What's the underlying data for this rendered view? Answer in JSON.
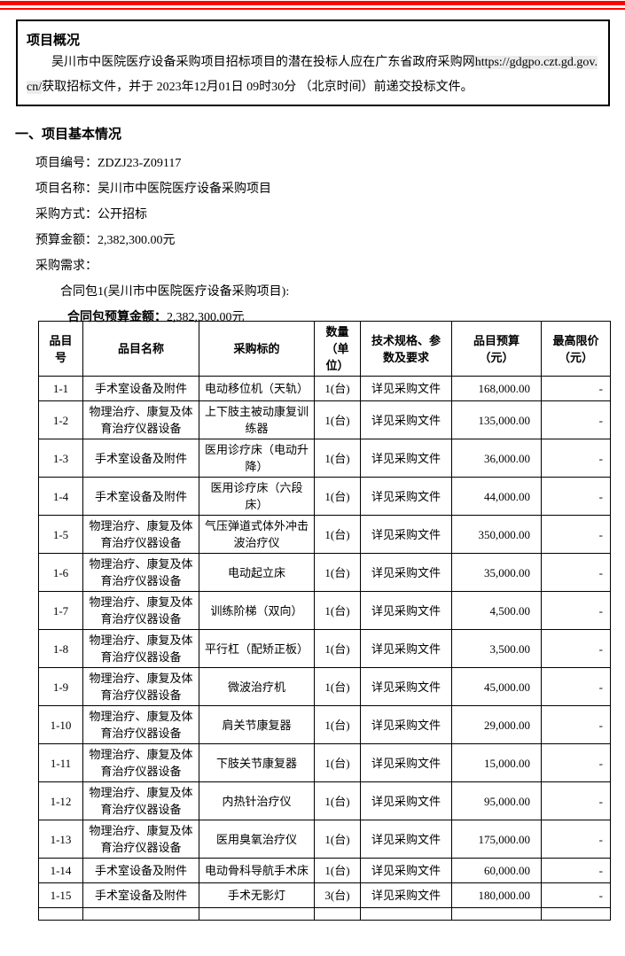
{
  "page": {
    "top_rules_color": "#ff0000"
  },
  "overview": {
    "title": "项目概况",
    "para_before_url": "吴川市中医院医疗设备采购项目招标项目的潜在投标人应在广东省政府采购网",
    "url": "https://gdgpo.czt.gd.gov.cn/",
    "para_after_url": "获取招标文件，并于 2023年12月01日 09时30分 （北京时间）前递交投标文件。"
  },
  "basic_info": {
    "heading": "一、项目基本情况",
    "fields": [
      "项目编号：ZDZJ23-Z09117",
      "项目名称：吴川市中医院医疗设备采购项目",
      "采购方式：公开招标",
      "预算金额：2,382,300.00元",
      "采购需求："
    ],
    "contract_package": "合同包1(吴川市中医院医疗设备采购项目):",
    "contract_budget_label": "合同包预算金额：",
    "contract_budget_value": "2,382,300.00元"
  },
  "table": {
    "headers": [
      "品目\n号",
      "品目名称",
      "采购标的",
      "数量\n（单\n位）",
      "技术规格、参\n数及要求",
      "品目预算\n（元）",
      "最高限价\n（元）"
    ],
    "rows": [
      {
        "id": "1-1",
        "category": "手术室设备及附件",
        "item": "电动移位机（天轨）",
        "qty": "1(台)",
        "spec": "详见采购文件",
        "budget": "168,000.00",
        "cap": "-"
      },
      {
        "id": "1-2",
        "category": "物理治疗、康复及体\n育治疗仪器设备",
        "item": "上下肢主被动康复训\n练器",
        "qty": "1(台)",
        "spec": "详见采购文件",
        "budget": "135,000.00",
        "cap": "-"
      },
      {
        "id": "1-3",
        "category": "手术室设备及附件",
        "item": "医用诊疗床（电动升\n降）",
        "qty": "1(台)",
        "spec": "详见采购文件",
        "budget": "36,000.00",
        "cap": "-"
      },
      {
        "id": "1-4",
        "category": "手术室设备及附件",
        "item": "医用诊疗床（六段\n床）",
        "qty": "1(台)",
        "spec": "详见采购文件",
        "budget": "44,000.00",
        "cap": "-"
      },
      {
        "id": "1-5",
        "category": "物理治疗、康复及体\n育治疗仪器设备",
        "item": "气压弹道式体外冲击\n波治疗仪",
        "qty": "1(台)",
        "spec": "详见采购文件",
        "budget": "350,000.00",
        "cap": "-"
      },
      {
        "id": "1-6",
        "category": "物理治疗、康复及体\n育治疗仪器设备",
        "item": "电动起立床",
        "qty": "1(台)",
        "spec": "详见采购文件",
        "budget": "35,000.00",
        "cap": "-"
      },
      {
        "id": "1-7",
        "category": "物理治疗、康复及体\n育治疗仪器设备",
        "item": "训练阶梯（双向）",
        "qty": "1(台)",
        "spec": "详见采购文件",
        "budget": "4,500.00",
        "cap": "-"
      },
      {
        "id": "1-8",
        "category": "物理治疗、康复及体\n育治疗仪器设备",
        "item": "平行杠（配矫正板）",
        "qty": "1(台)",
        "spec": "详见采购文件",
        "budget": "3,500.00",
        "cap": "-"
      },
      {
        "id": "1-9",
        "category": "物理治疗、康复及体\n育治疗仪器设备",
        "item": "微波治疗机",
        "qty": "1(台)",
        "spec": "详见采购文件",
        "budget": "45,000.00",
        "cap": "-"
      },
      {
        "id": "1-10",
        "category": "物理治疗、康复及体\n育治疗仪器设备",
        "item": "肩关节康复器",
        "qty": "1(台)",
        "spec": "详见采购文件",
        "budget": "29,000.00",
        "cap": "-"
      },
      {
        "id": "1-11",
        "category": "物理治疗、康复及体\n育治疗仪器设备",
        "item": "下肢关节康复器",
        "qty": "1(台)",
        "spec": "详见采购文件",
        "budget": "15,000.00",
        "cap": "-"
      },
      {
        "id": "1-12",
        "category": "物理治疗、康复及体\n育治疗仪器设备",
        "item": "内热针治疗仪",
        "qty": "1(台)",
        "spec": "详见采购文件",
        "budget": "95,000.00",
        "cap": "-"
      },
      {
        "id": "1-13",
        "category": "物理治疗、康复及体\n育治疗仪器设备",
        "item": "医用臭氧治疗仪",
        "qty": "1(台)",
        "spec": "详见采购文件",
        "budget": "175,000.00",
        "cap": "-"
      },
      {
        "id": "1-14",
        "category": "手术室设备及附件",
        "item": "电动骨科导航手术床",
        "qty": "1(台)",
        "spec": "详见采购文件",
        "budget": "60,000.00",
        "cap": "-"
      },
      {
        "id": "1-15",
        "category": "手术室设备及附件",
        "item": "手术无影灯",
        "qty": "3(台)",
        "spec": "详见采购文件",
        "budget": "180,000.00",
        "cap": "-"
      }
    ]
  }
}
